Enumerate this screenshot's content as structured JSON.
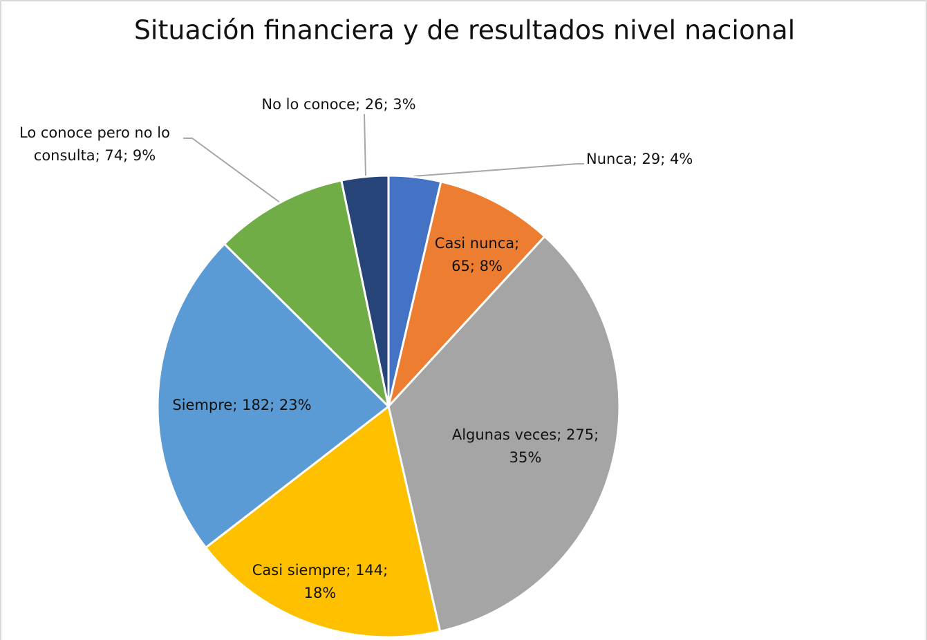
{
  "chart_data": {
    "type": "pie",
    "title": "Situación financiera y de resultados nivel nacional",
    "categories": [
      "Nunca",
      "Casi nunca",
      "Algunas veces",
      "Casi siempre",
      "Siempre",
      "Lo conoce pero no lo consulta",
      "No lo conoce"
    ],
    "values": [
      29,
      65,
      275,
      144,
      182,
      74,
      26
    ],
    "value_labels": [
      "Nunca; 29; 4%",
      "Casi nunca;\n65; 8%",
      "Algunas veces; 275;\n35%",
      "Casi siempre; 144;\n18%",
      "Siempre; 182; 23%",
      "Lo conoce pero no lo\nconsulta; 74; 9%",
      "No lo conoce; 26; 3%"
    ],
    "colors": [
      "#4472c4",
      "#ed7d31",
      "#a5a5a5",
      "#ffc000",
      "#5b9bd5",
      "#70ad47",
      "#264478"
    ]
  }
}
